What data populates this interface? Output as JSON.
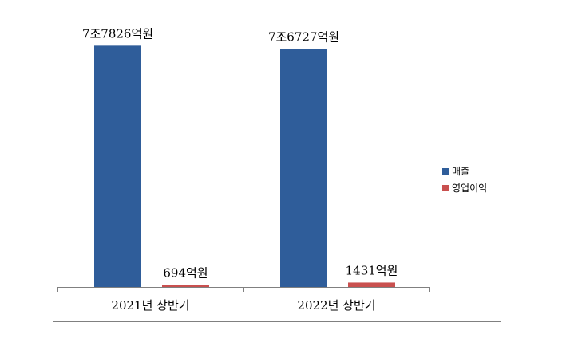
{
  "chart_data": {
    "type": "bar",
    "categories": [
      "2021년 상반기",
      "2022년 상반기"
    ],
    "series": [
      {
        "name": "매출",
        "values": [
          77826,
          76727
        ],
        "labels": [
          "7조7826억원",
          "7조6727억원"
        ],
        "color": "#2F5D9A"
      },
      {
        "name": "영업이익",
        "values": [
          694,
          1431
        ],
        "labels": [
          "694억원",
          "1431억원"
        ],
        "color": "#C9504F"
      }
    ],
    "ylim": [
      0,
      90000
    ],
    "grid": false,
    "legend_position": "right"
  }
}
